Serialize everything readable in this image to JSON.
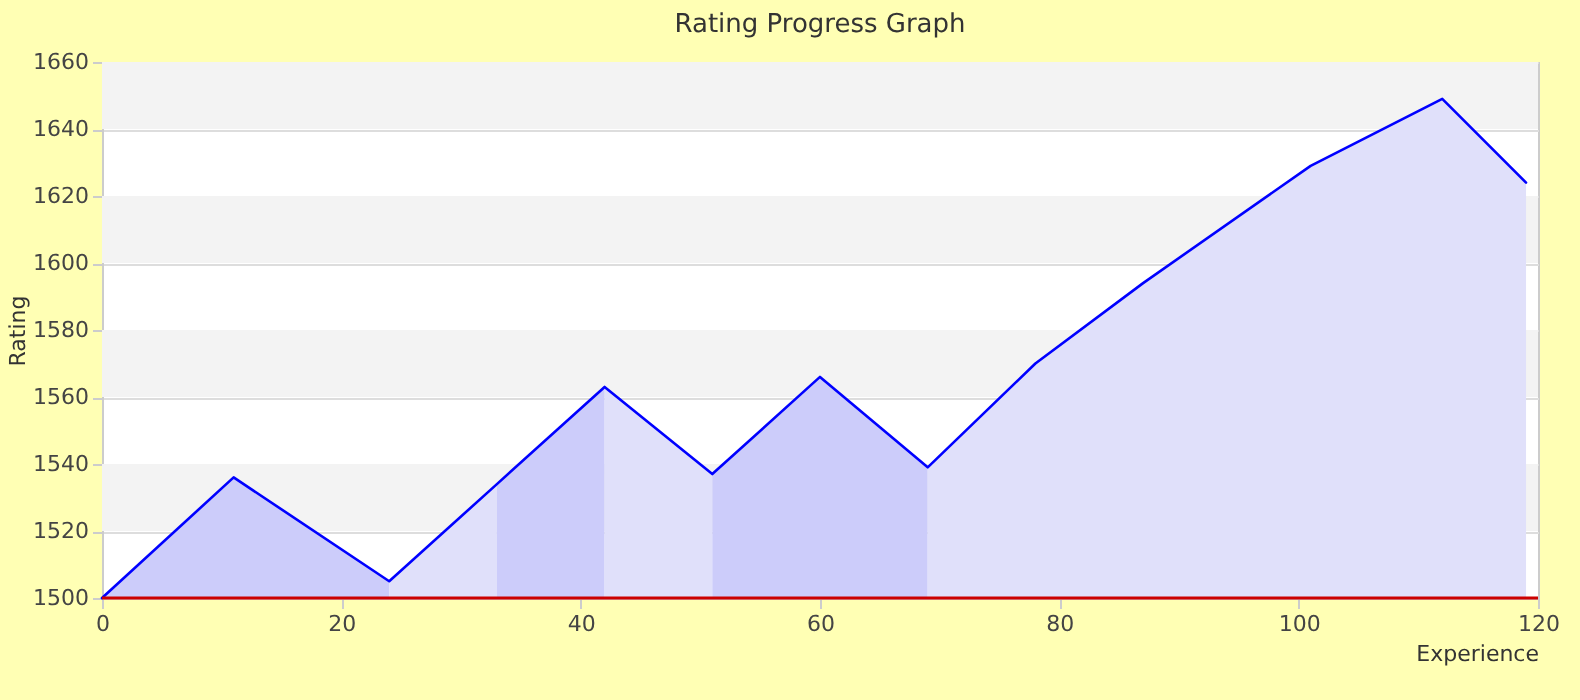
{
  "chart_data": {
    "type": "area",
    "title": "Rating Progress Graph",
    "xlabel": "Experience",
    "ylabel": "Rating",
    "xlim": [
      0,
      120
    ],
    "xticks": [
      0,
      20,
      40,
      60,
      80,
      100,
      120
    ],
    "ylim": [
      1500,
      1660
    ],
    "yticks": [
      1500,
      1520,
      1540,
      1560,
      1580,
      1600,
      1620,
      1640,
      1660
    ],
    "grid": "y",
    "series": [
      {
        "color": "#ccccfa",
        "x": [
          0,
          11,
          24
        ],
        "values": [
          1500,
          1536,
          1505
        ]
      },
      {
        "color": "#e0e0fa",
        "x": [
          24,
          33
        ],
        "values": [
          1505,
          1534
        ]
      },
      {
        "color": "#ccccfa",
        "x": [
          33,
          42
        ],
        "values": [
          1534,
          1563
        ]
      },
      {
        "color": "#e0e0fa",
        "x": [
          42,
          51
        ],
        "values": [
          1563,
          1537
        ]
      },
      {
        "color": "#ccccfa",
        "x": [
          51,
          60,
          69
        ],
        "values": [
          1537,
          1566,
          1539
        ]
      },
      {
        "color": "#e0e0fa",
        "x": [
          69,
          78,
          87,
          101,
          112,
          119
        ],
        "values": [
          1539,
          1570,
          1594,
          1629,
          1649,
          1624
        ]
      },
      {
        "type": "line",
        "color": "#0000ff",
        "x": [
          0,
          11,
          24,
          33,
          42,
          51,
          60,
          69,
          78,
          87,
          101,
          112,
          119
        ],
        "values": [
          1500,
          1536,
          1505,
          1534,
          1563,
          1537,
          1566,
          1539,
          1570,
          1594,
          1629,
          1649,
          1624
        ]
      }
    ],
    "bands": [
      {
        "axis": "y",
        "from": 1520,
        "to": 1540,
        "color": "#f3f3f3"
      },
      {
        "axis": "y",
        "from": 1560,
        "to": 1580,
        "color": "#f3f3f3"
      },
      {
        "axis": "y",
        "from": 1600,
        "to": 1620,
        "color": "#f3f3f3"
      },
      {
        "axis": "y",
        "from": 1640,
        "to": 1660,
        "color": "#f3f3f3"
      }
    ],
    "ref_lines": [
      {
        "axis": "y",
        "value": 1500,
        "color": "#cc0000"
      }
    ]
  }
}
